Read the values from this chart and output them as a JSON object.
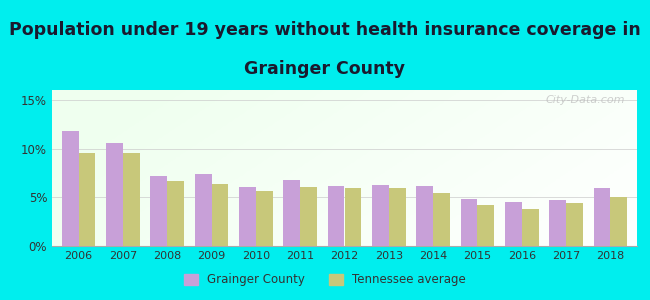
{
  "title_line1": "Population under 19 years without health insurance coverage in",
  "title_line2": "Grainger County",
  "years": [
    2006,
    2007,
    2008,
    2009,
    2010,
    2011,
    2012,
    2013,
    2014,
    2015,
    2016,
    2017,
    2018
  ],
  "grainger": [
    11.8,
    10.6,
    7.2,
    7.4,
    6.1,
    6.8,
    6.2,
    6.3,
    6.2,
    4.8,
    4.5,
    4.7,
    6.0
  ],
  "tennessee": [
    9.5,
    9.5,
    6.7,
    6.4,
    5.6,
    6.1,
    5.9,
    6.0,
    5.4,
    4.2,
    3.8,
    4.4,
    5.0
  ],
  "grainger_color": "#C8A0D8",
  "tennessee_color": "#C8C87A",
  "background_outer": "#00EEEE",
  "ylim": [
    0,
    16
  ],
  "yticks": [
    0,
    5,
    10,
    15
  ],
  "ytick_labels": [
    "0%",
    "5%",
    "10%",
    "15%"
  ],
  "bar_width": 0.38,
  "title_fontsize": 12.5,
  "title_color": "#1a1a2e",
  "legend_labels": [
    "Grainger County",
    "Tennessee average"
  ],
  "watermark": "City-Data.com"
}
